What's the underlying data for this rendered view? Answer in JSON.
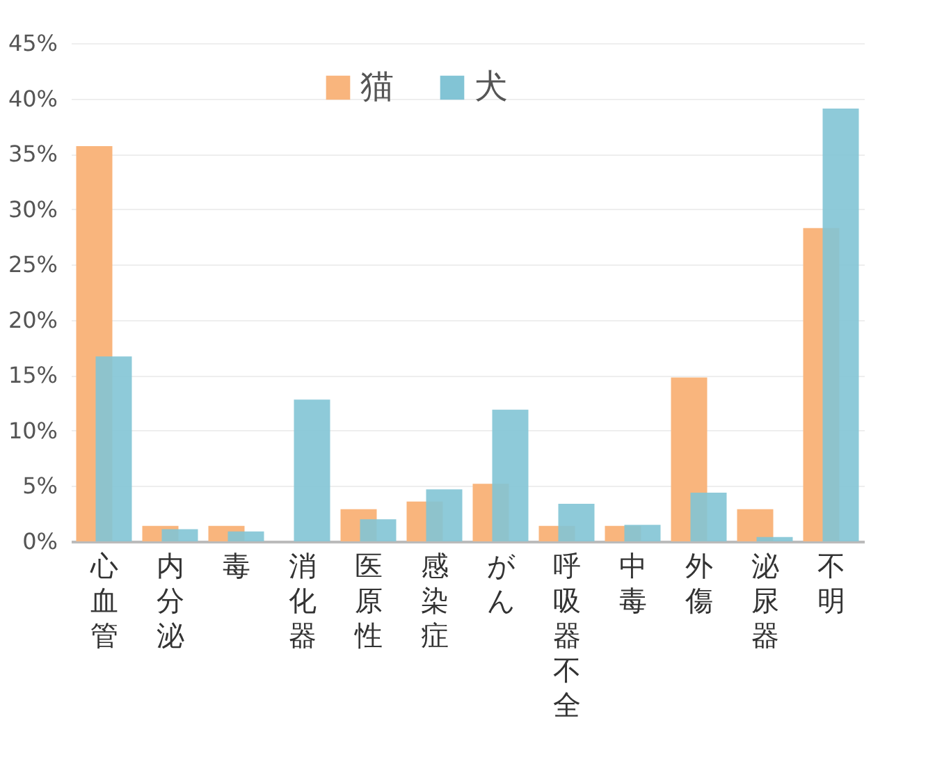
{
  "chart_data": {
    "type": "bar",
    "categories": [
      "心血管",
      "内分泌",
      "毒",
      "消化器",
      "医原性",
      "感染症",
      "がん",
      "呼吸器不全",
      "中毒",
      "外傷",
      "泌尿器",
      "不明"
    ],
    "series": [
      {
        "name": "猫",
        "color": "#f9b57d",
        "values": [
          35.7,
          1.4,
          1.4,
          0,
          2.9,
          3.6,
          5.2,
          1.4,
          1.4,
          14.8,
          2.9,
          28.3
        ]
      },
      {
        "name": "犬",
        "color": "#82c4d5",
        "values": [
          16.7,
          1.1,
          0.9,
          12.8,
          2.0,
          4.7,
          11.9,
          3.4,
          1.5,
          4.4,
          0.4,
          39.1
        ]
      }
    ],
    "ylim": [
      0,
      45
    ],
    "yticks": [
      {
        "value": 0,
        "label": "0%"
      },
      {
        "value": 5,
        "label": "5%"
      },
      {
        "value": 10,
        "label": "10%"
      },
      {
        "value": 15,
        "label": "15%"
      },
      {
        "value": 20,
        "label": "20%"
      },
      {
        "value": 25,
        "label": "25%"
      },
      {
        "value": 30,
        "label": "30%"
      },
      {
        "value": 35,
        "label": "35%"
      },
      {
        "value": 40,
        "label": "40%"
      },
      {
        "value": 45,
        "label": "45%"
      }
    ],
    "grid": "y",
    "legend": "top"
  }
}
